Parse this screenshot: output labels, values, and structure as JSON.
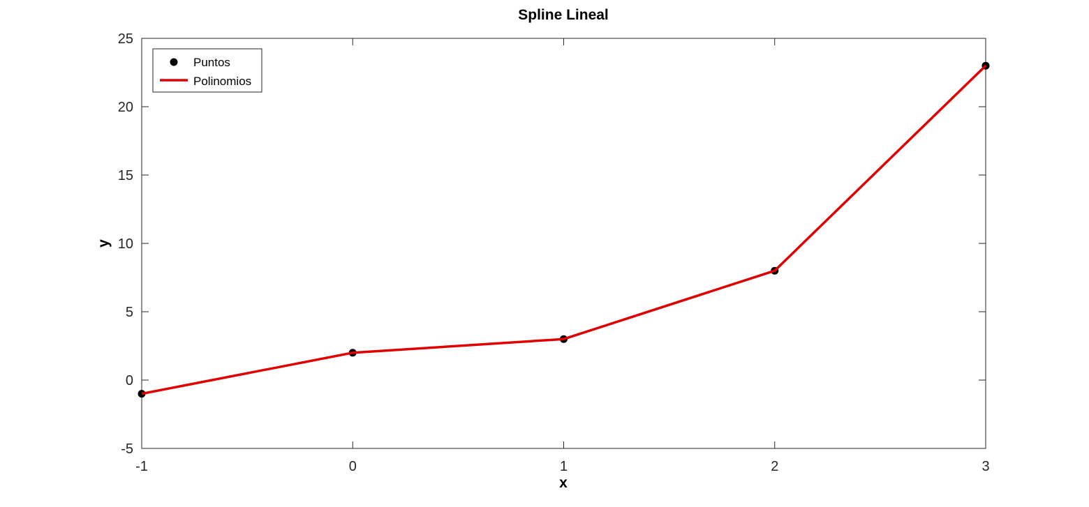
{
  "chart_data": {
    "type": "line",
    "title": "Spline Lineal",
    "xlabel": "x",
    "ylabel": "y",
    "xlim": [
      -1,
      3
    ],
    "ylim": [
      -5,
      25
    ],
    "xticks": [
      -1,
      0,
      1,
      2,
      3
    ],
    "yticks": [
      -5,
      0,
      5,
      10,
      15,
      20,
      25
    ],
    "grid": false,
    "legend_position": "top-left",
    "series": [
      {
        "name": "Puntos",
        "style": "markers",
        "color": "#000000",
        "x": [
          -1,
          0,
          1,
          2,
          3
        ],
        "y": [
          -1,
          2,
          3,
          8,
          23
        ]
      },
      {
        "name": "Polinomios",
        "style": "line",
        "color": "#e00000",
        "x": [
          -1,
          0,
          1,
          2,
          3
        ],
        "y": [
          -1,
          2,
          3,
          8,
          23
        ]
      }
    ]
  }
}
